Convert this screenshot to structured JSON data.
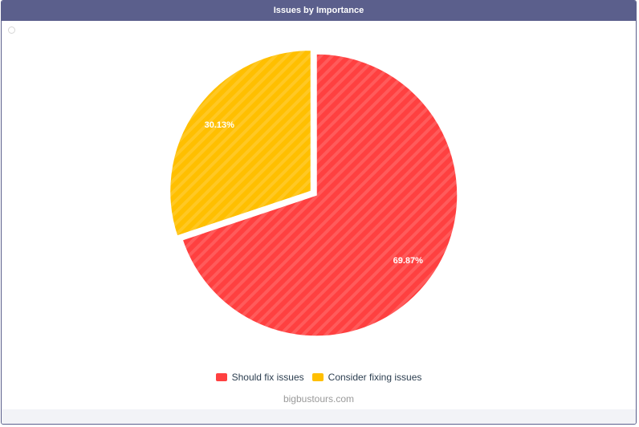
{
  "header": {
    "title": "Issues by Importance"
  },
  "chart_data": {
    "type": "pie",
    "title": "Issues by Importance",
    "slices": [
      {
        "label": "Should fix issues",
        "value": 69.87,
        "display": "69.87%",
        "color": "#ff4040"
      },
      {
        "label": "Consider fixing issues",
        "value": 30.13,
        "display": "30.13%",
        "color": "#ffbf00"
      }
    ],
    "legend_position": "bottom",
    "pattern": "diagonal-stripes"
  },
  "footer": {
    "domain": "bigbustours.com"
  },
  "colors": {
    "header_bg": "#5b5f8c",
    "label_text": "#ffffff",
    "legend_text": "#2c3e50"
  }
}
